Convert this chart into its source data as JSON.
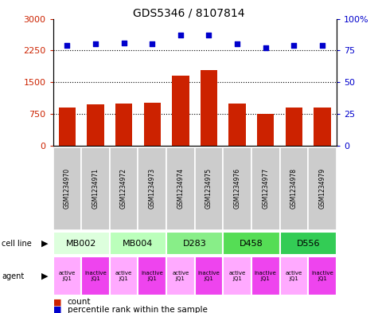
{
  "title": "GDS5346 / 8107814",
  "samples": [
    "GSM1234970",
    "GSM1234971",
    "GSM1234972",
    "GSM1234973",
    "GSM1234974",
    "GSM1234975",
    "GSM1234976",
    "GSM1234977",
    "GSM1234978",
    "GSM1234979"
  ],
  "counts": [
    900,
    970,
    1000,
    1020,
    1650,
    1780,
    1000,
    750,
    900,
    900
  ],
  "percentiles": [
    79,
    80,
    81,
    80,
    87,
    87,
    80,
    77,
    79,
    79
  ],
  "bar_color": "#cc2200",
  "dot_color": "#0000cc",
  "ylim_left": [
    0,
    3000
  ],
  "ylim_right": [
    0,
    100
  ],
  "yticks_left": [
    0,
    750,
    1500,
    2250,
    3000
  ],
  "yticks_right": [
    0,
    25,
    50,
    75,
    100
  ],
  "cell_lines": [
    {
      "label": "MB002",
      "cols": [
        0,
        1
      ],
      "color": "#ddffdd"
    },
    {
      "label": "MB004",
      "cols": [
        2,
        3
      ],
      "color": "#bbffbb"
    },
    {
      "label": "D283",
      "cols": [
        4,
        5
      ],
      "color": "#88ee88"
    },
    {
      "label": "D458",
      "cols": [
        6,
        7
      ],
      "color": "#55dd55"
    },
    {
      "label": "D556",
      "cols": [
        8,
        9
      ],
      "color": "#33cc55"
    }
  ],
  "agents": [
    "active\nJQ1",
    "inactive\nJQ1",
    "active\nJQ1",
    "inactive\nJQ1",
    "active\nJQ1",
    "inactive\nJQ1",
    "active\nJQ1",
    "inactive\nJQ1",
    "active\nJQ1",
    "inactive\nJQ1"
  ],
  "agent_active_color": "#ffaaff",
  "agent_inactive_color": "#ee44ee",
  "sample_bg_color": "#cccccc",
  "legend_count_color": "#cc2200",
  "legend_pct_color": "#0000cc",
  "left_label_color": "#cc2200",
  "right_label_color": "#0000cc"
}
